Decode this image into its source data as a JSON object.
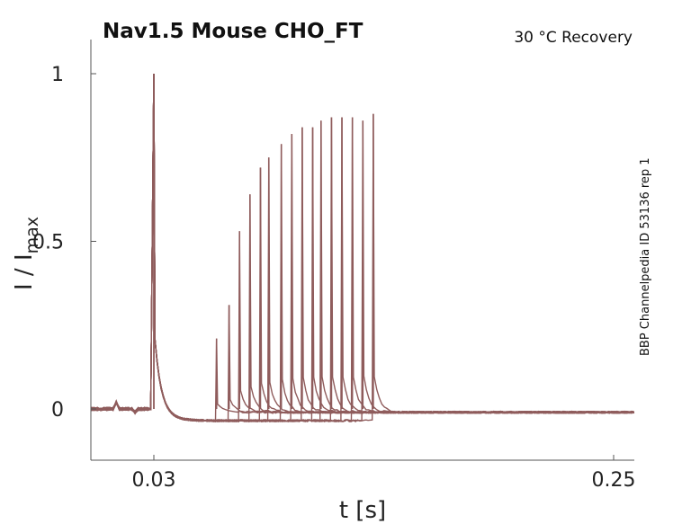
{
  "chart_data": {
    "type": "line",
    "title": "Nav1.5  Mouse  CHO_FT",
    "subtitle": "30 °C  Recovery",
    "side_label": "BBP Channelpedia ID 53136 rep 1",
    "xlabel": "t [s]",
    "ylabel": "I / I",
    "ylabel_sub": "max",
    "xlim": [
      -0.0,
      0.26
    ],
    "ylim": [
      -0.15,
      1.1
    ],
    "x_ticks": [
      0.03,
      0.25
    ],
    "x_tick_labels": [
      "0.03",
      "0.25"
    ],
    "y_ticks": [
      0,
      0.5,
      1
    ],
    "y_tick_labels": [
      "0",
      "0.5",
      "1"
    ],
    "grid": false,
    "legend": "none",
    "trace_color": "#8f5c5c",
    "conditioning_pulse": {
      "t": 0.03,
      "peak": 1.0
    },
    "recovery_pulses": [
      {
        "t": 0.06,
        "peak": 0.21
      },
      {
        "t": 0.066,
        "peak": 0.31
      },
      {
        "t": 0.071,
        "peak": 0.53
      },
      {
        "t": 0.076,
        "peak": 0.64
      },
      {
        "t": 0.081,
        "peak": 0.72
      },
      {
        "t": 0.085,
        "peak": 0.75
      },
      {
        "t": 0.091,
        "peak": 0.79
      },
      {
        "t": 0.096,
        "peak": 0.82
      },
      {
        "t": 0.101,
        "peak": 0.84
      },
      {
        "t": 0.106,
        "peak": 0.84
      },
      {
        "t": 0.11,
        "peak": 0.86
      },
      {
        "t": 0.115,
        "peak": 0.87
      },
      {
        "t": 0.12,
        "peak": 0.87
      },
      {
        "t": 0.125,
        "peak": 0.87
      },
      {
        "t": 0.13,
        "peak": 0.86
      },
      {
        "t": 0.135,
        "peak": 0.88
      }
    ]
  }
}
